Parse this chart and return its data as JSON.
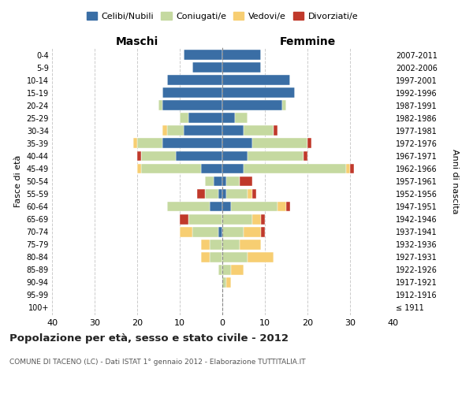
{
  "age_groups": [
    "100+",
    "95-99",
    "90-94",
    "85-89",
    "80-84",
    "75-79",
    "70-74",
    "65-69",
    "60-64",
    "55-59",
    "50-54",
    "45-49",
    "40-44",
    "35-39",
    "30-34",
    "25-29",
    "20-24",
    "15-19",
    "10-14",
    "5-9",
    "0-4"
  ],
  "birth_years": [
    "≤ 1911",
    "1912-1916",
    "1917-1921",
    "1922-1926",
    "1927-1931",
    "1932-1936",
    "1937-1941",
    "1942-1946",
    "1947-1951",
    "1952-1956",
    "1957-1961",
    "1962-1966",
    "1967-1971",
    "1972-1976",
    "1977-1981",
    "1982-1986",
    "1987-1991",
    "1992-1996",
    "1997-2001",
    "2002-2006",
    "2007-2011"
  ],
  "maschi": {
    "celibi": [
      0,
      0,
      0,
      0,
      0,
      0,
      1,
      0,
      3,
      1,
      2,
      5,
      11,
      14,
      9,
      8,
      14,
      14,
      13,
      7,
      9
    ],
    "coniugati": [
      0,
      0,
      0,
      1,
      3,
      3,
      6,
      8,
      10,
      3,
      2,
      14,
      8,
      6,
      4,
      2,
      1,
      0,
      0,
      0,
      0
    ],
    "vedovi": [
      0,
      0,
      0,
      0,
      2,
      2,
      3,
      0,
      0,
      0,
      0,
      1,
      0,
      1,
      1,
      0,
      0,
      0,
      0,
      0,
      0
    ],
    "divorziati": [
      0,
      0,
      0,
      0,
      0,
      0,
      0,
      2,
      0,
      2,
      0,
      0,
      1,
      0,
      0,
      0,
      0,
      0,
      0,
      0,
      0
    ]
  },
  "femmine": {
    "nubili": [
      0,
      0,
      0,
      0,
      0,
      0,
      0,
      0,
      2,
      1,
      1,
      5,
      6,
      7,
      5,
      3,
      14,
      17,
      16,
      9,
      9
    ],
    "coniugate": [
      0,
      0,
      1,
      2,
      6,
      4,
      5,
      7,
      11,
      5,
      3,
      24,
      13,
      13,
      7,
      3,
      1,
      0,
      0,
      0,
      0
    ],
    "vedove": [
      0,
      0,
      1,
      3,
      6,
      5,
      4,
      2,
      2,
      1,
      0,
      1,
      0,
      0,
      0,
      0,
      0,
      0,
      0,
      0,
      0
    ],
    "divorziate": [
      0,
      0,
      0,
      0,
      0,
      0,
      1,
      1,
      1,
      1,
      3,
      1,
      1,
      1,
      1,
      0,
      0,
      0,
      0,
      0,
      0
    ]
  },
  "color_celibi": "#3a6ea5",
  "color_coniugati": "#c5d9a0",
  "color_vedovi": "#f7ce72",
  "color_divorziati": "#c0392b",
  "xlim": 40,
  "title": "Popolazione per età, sesso e stato civile - 2012",
  "subtitle": "COMUNE DI TACENO (LC) - Dati ISTAT 1° gennaio 2012 - Elaborazione TUTTITALIA.IT",
  "ylabel_left": "Fasce di età",
  "ylabel_right": "Anni di nascita",
  "xlabel_maschi": "Maschi",
  "xlabel_femmine": "Femmine",
  "background_color": "#ffffff",
  "grid_color": "#cccccc"
}
